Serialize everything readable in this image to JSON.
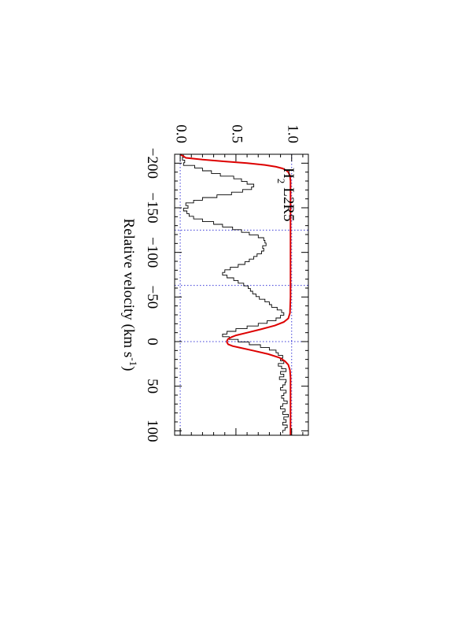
{
  "chart_data": {
    "type": "line",
    "orientation": "rotated-90-clockwise",
    "xlabel_main": "Relative velocity (km s",
    "xlabel_sup": "-1",
    "xlabel_close": ")",
    "annotation": {
      "species": "H",
      "subscript": "2",
      "transition": "L2R5",
      "x": -195,
      "y": 0.93
    },
    "xlim": [
      -210,
      105
    ],
    "ylim": [
      -0.05,
      1.15
    ],
    "xticks": [
      -200,
      -150,
      -100,
      -50,
      0,
      50,
      100
    ],
    "xtick_labels": [
      "−200",
      "−150",
      "−100",
      "−50",
      "0",
      "50",
      "100"
    ],
    "yticks": [
      0.0,
      0.5,
      1.0
    ],
    "ytick_labels": [
      "0.0",
      "0.5",
      "1.0"
    ],
    "reference_lines": {
      "horizontal": [
        0.0,
        1.0
      ],
      "vertical": [
        -125,
        -63,
        0
      ]
    },
    "series": [
      {
        "style": "steps",
        "color": "#000000",
        "x": [
          -208,
          -205,
          -202,
          -199,
          -196,
          -193,
          -190,
          -187,
          -184,
          -181,
          -178,
          -175,
          -172,
          -169,
          -166,
          -163,
          -160,
          -157,
          -154,
          -151,
          -148,
          -145,
          -142,
          -139,
          -136,
          -133,
          -130,
          -127,
          -124,
          -121,
          -118,
          -115,
          -112,
          -109,
          -106,
          -103,
          -100,
          -97,
          -94,
          -91,
          -88,
          -85,
          -82,
          -79,
          -76,
          -73,
          -70,
          -67,
          -64,
          -61,
          -58,
          -55,
          -52,
          -49,
          -46,
          -43,
          -40,
          -37,
          -34,
          -31,
          -28,
          -25,
          -22,
          -19,
          -16,
          -13,
          -10,
          -7,
          -4,
          -1,
          2,
          5,
          8,
          11,
          14,
          17,
          20,
          23,
          26,
          29,
          32,
          35,
          38,
          41,
          44,
          47,
          50,
          53,
          56,
          59,
          62,
          65,
          68,
          71,
          74,
          77,
          80,
          83,
          86,
          89,
          92,
          95,
          98,
          101
        ],
        "y": [
          0.03,
          0.02,
          0.04,
          0.03,
          0.13,
          0.2,
          0.28,
          0.36,
          0.48,
          0.55,
          0.6,
          0.66,
          0.64,
          0.56,
          0.46,
          0.33,
          0.2,
          0.12,
          0.05,
          0.07,
          0.03,
          0.06,
          0.08,
          0.12,
          0.2,
          0.3,
          0.38,
          0.47,
          0.55,
          0.62,
          0.7,
          0.75,
          0.76,
          0.77,
          0.74,
          0.75,
          0.73,
          0.69,
          0.66,
          0.62,
          0.58,
          0.52,
          0.45,
          0.4,
          0.38,
          0.42,
          0.48,
          0.52,
          0.57,
          0.61,
          0.63,
          0.65,
          0.68,
          0.71,
          0.76,
          0.8,
          0.82,
          0.87,
          0.91,
          0.93,
          0.9,
          0.86,
          0.78,
          0.7,
          0.6,
          0.5,
          0.42,
          0.38,
          0.44,
          0.52,
          0.62,
          0.72,
          0.8,
          0.86,
          0.88,
          0.92,
          0.9,
          0.93,
          0.88,
          0.91,
          0.95,
          0.9,
          0.93,
          0.89,
          0.95,
          0.94,
          0.92,
          0.9,
          0.95,
          0.93,
          0.91,
          0.93,
          0.96,
          0.92,
          0.9,
          0.94,
          0.92,
          0.97,
          0.93,
          0.95,
          0.92,
          0.96,
          0.94,
          0.92
        ]
      },
      {
        "style": "line",
        "color": "#dd0000",
        "x": [
          -210,
          -206,
          -204,
          -202,
          -200,
          -198,
          -196,
          -194,
          -192,
          -190,
          -186,
          -180,
          -170,
          -150,
          -100,
          -50,
          -32,
          -26,
          -22,
          -18,
          -14,
          -10,
          -7,
          -5,
          -3,
          -1,
          0,
          1,
          3,
          5,
          7,
          10,
          14,
          18,
          22,
          26,
          32,
          40,
          60,
          80,
          105
        ],
        "y": [
          0.0,
          0.05,
          0.2,
          0.4,
          0.6,
          0.76,
          0.86,
          0.92,
          0.95,
          0.97,
          0.985,
          0.99,
          0.99,
          0.99,
          0.99,
          0.99,
          0.985,
          0.97,
          0.93,
          0.85,
          0.73,
          0.6,
          0.5,
          0.46,
          0.43,
          0.42,
          0.42,
          0.42,
          0.43,
          0.47,
          0.54,
          0.65,
          0.79,
          0.89,
          0.94,
          0.97,
          0.985,
          0.99,
          0.99,
          0.99,
          0.99
        ]
      }
    ]
  }
}
